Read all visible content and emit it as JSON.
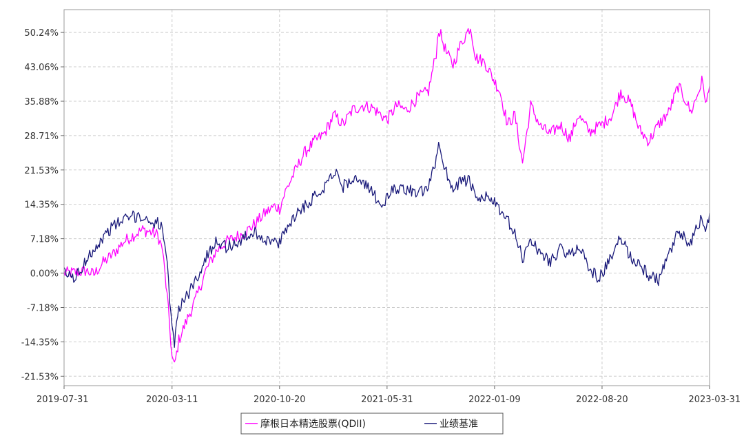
{
  "chart_data": {
    "type": "line",
    "title": "",
    "xlabel": "",
    "ylabel": "",
    "x_ticks": [
      "2019-07-31",
      "2020-03-11",
      "2020-10-20",
      "2021-05-31",
      "2022-01-09",
      "2022-08-20",
      "2023-03-31"
    ],
    "y_ticks": [
      "50.24%",
      "43.06%",
      "35.88%",
      "28.71%",
      "21.53%",
      "14.35%",
      "7.18%",
      "0.00%",
      "-7.18%",
      "-14.35%",
      "-21.53%"
    ],
    "ylim": [
      -23.5,
      55
    ],
    "xlim": [
      "2019-07-31",
      "2023-03-31"
    ],
    "grid": true,
    "legend_position": "bottom-center",
    "series": [
      {
        "name": "摩根日本精选股票(QDII)",
        "color": "#ff00ff",
        "points": [
          [
            "2019-07-31",
            0.0
          ],
          [
            "2019-08-31",
            0.2
          ],
          [
            "2019-09-15",
            0.5
          ],
          [
            "2019-10-01",
            -0.3
          ],
          [
            "2019-10-20",
            2.2
          ],
          [
            "2019-11-10",
            4.0
          ],
          [
            "2019-12-01",
            6.5
          ],
          [
            "2019-12-20",
            7.8
          ],
          [
            "2020-01-10",
            9.0
          ],
          [
            "2020-01-25",
            8.6
          ],
          [
            "2020-02-10",
            8.0
          ],
          [
            "2020-02-20",
            5.0
          ],
          [
            "2020-03-01",
            -5.0
          ],
          [
            "2020-03-11",
            -17.5
          ],
          [
            "2020-03-16",
            -19.5
          ],
          [
            "2020-03-25",
            -14.0
          ],
          [
            "2020-04-10",
            -10.0
          ],
          [
            "2020-05-01",
            -5.0
          ],
          [
            "2020-05-20",
            0.5
          ],
          [
            "2020-06-10",
            4.5
          ],
          [
            "2020-07-01",
            6.5
          ],
          [
            "2020-07-20",
            7.5
          ],
          [
            "2020-08-10",
            8.5
          ],
          [
            "2020-09-01",
            10.5
          ],
          [
            "2020-09-20",
            12.5
          ],
          [
            "2020-10-10",
            14.0
          ],
          [
            "2020-10-20",
            13.5
          ],
          [
            "2020-11-01",
            17.0
          ],
          [
            "2020-11-20",
            21.0
          ],
          [
            "2020-12-10",
            25.0
          ],
          [
            "2021-01-01",
            27.5
          ],
          [
            "2021-01-20",
            29.0
          ],
          [
            "2021-02-10",
            33.0
          ],
          [
            "2021-03-01",
            31.0
          ],
          [
            "2021-03-20",
            34.0
          ],
          [
            "2021-04-10",
            35.0
          ],
          [
            "2021-05-01",
            34.5
          ],
          [
            "2021-05-31",
            32.0
          ],
          [
            "2021-06-20",
            35.0
          ],
          [
            "2021-07-10",
            34.0
          ],
          [
            "2021-08-01",
            36.5
          ],
          [
            "2021-08-25",
            38.0
          ],
          [
            "2021-09-10",
            46.0
          ],
          [
            "2021-09-15",
            51.0
          ],
          [
            "2021-10-01",
            46.0
          ],
          [
            "2021-10-15",
            43.5
          ],
          [
            "2021-11-01",
            48.0
          ],
          [
            "2021-11-20",
            51.5
          ],
          [
            "2021-12-01",
            45.0
          ],
          [
            "2021-12-20",
            44.0
          ],
          [
            "2022-01-09",
            40.0
          ],
          [
            "2022-01-20",
            38.0
          ],
          [
            "2022-02-05",
            31.0
          ],
          [
            "2022-02-20",
            33.0
          ],
          [
            "2022-03-08",
            23.0
          ],
          [
            "2022-03-25",
            35.0
          ],
          [
            "2022-04-15",
            30.5
          ],
          [
            "2022-05-05",
            29.0
          ],
          [
            "2022-05-25",
            31.0
          ],
          [
            "2022-06-15",
            28.0
          ],
          [
            "2022-07-01",
            33.0
          ],
          [
            "2022-07-25",
            29.5
          ],
          [
            "2022-08-10",
            30.5
          ],
          [
            "2022-08-20",
            31.0
          ],
          [
            "2022-09-10",
            33.0
          ],
          [
            "2022-09-28",
            38.0
          ],
          [
            "2022-10-20",
            35.0
          ],
          [
            "2022-11-05",
            30.0
          ],
          [
            "2022-11-25",
            27.5
          ],
          [
            "2022-12-15",
            31.0
          ],
          [
            "2023-01-05",
            33.5
          ],
          [
            "2023-01-25",
            39.0
          ],
          [
            "2023-02-10",
            36.0
          ],
          [
            "2023-02-20",
            33.5
          ],
          [
            "2023-03-05",
            37.0
          ],
          [
            "2023-03-15",
            40.0
          ],
          [
            "2023-03-25",
            35.5
          ],
          [
            "2023-03-31",
            39.0
          ]
        ]
      },
      {
        "name": "业绩基准",
        "color": "#1a1a7a",
        "points": [
          [
            "2019-07-31",
            0.0
          ],
          [
            "2019-08-20",
            -1.0
          ],
          [
            "2019-09-05",
            0.5
          ],
          [
            "2019-09-20",
            4.0
          ],
          [
            "2019-10-10",
            6.0
          ],
          [
            "2019-11-01",
            9.0
          ],
          [
            "2019-11-20",
            10.5
          ],
          [
            "2019-12-10",
            11.5
          ],
          [
            "2020-01-01",
            12.0
          ],
          [
            "2020-01-20",
            11.0
          ],
          [
            "2020-02-10",
            10.5
          ],
          [
            "2020-02-20",
            9.5
          ],
          [
            "2020-03-01",
            1.0
          ],
          [
            "2020-03-11",
            -12.0
          ],
          [
            "2020-03-16",
            -14.5
          ],
          [
            "2020-03-25",
            -7.0
          ],
          [
            "2020-04-10",
            -5.0
          ],
          [
            "2020-05-01",
            -1.0
          ],
          [
            "2020-05-20",
            3.0
          ],
          [
            "2020-06-10",
            7.0
          ],
          [
            "2020-07-01",
            5.5
          ],
          [
            "2020-07-20",
            6.0
          ],
          [
            "2020-08-10",
            7.5
          ],
          [
            "2020-09-01",
            8.5
          ],
          [
            "2020-09-20",
            7.0
          ],
          [
            "2020-10-10",
            6.5
          ],
          [
            "2020-10-20",
            6.0
          ],
          [
            "2020-11-01",
            9.0
          ],
          [
            "2020-11-20",
            12.0
          ],
          [
            "2020-12-10",
            14.0
          ],
          [
            "2021-01-01",
            16.0
          ],
          [
            "2021-01-20",
            18.0
          ],
          [
            "2021-02-10",
            21.5
          ],
          [
            "2021-03-01",
            18.0
          ],
          [
            "2021-03-20",
            20.0
          ],
          [
            "2021-04-10",
            18.5
          ],
          [
            "2021-05-01",
            17.0
          ],
          [
            "2021-05-20",
            14.0
          ],
          [
            "2021-06-10",
            17.0
          ],
          [
            "2021-07-01",
            18.0
          ],
          [
            "2021-08-01",
            16.5
          ],
          [
            "2021-08-25",
            17.5
          ],
          [
            "2021-09-10",
            24.0
          ],
          [
            "2021-09-15",
            27.0
          ],
          [
            "2021-10-01",
            21.0
          ],
          [
            "2021-10-15",
            17.5
          ],
          [
            "2021-11-01",
            19.5
          ],
          [
            "2021-11-20",
            19.0
          ],
          [
            "2021-12-01",
            15.0
          ],
          [
            "2021-12-20",
            16.0
          ],
          [
            "2022-01-09",
            15.0
          ],
          [
            "2022-01-20",
            12.5
          ],
          [
            "2022-02-05",
            11.0
          ],
          [
            "2022-02-20",
            8.0
          ],
          [
            "2022-03-08",
            3.0
          ],
          [
            "2022-03-25",
            7.0
          ],
          [
            "2022-04-15",
            4.0
          ],
          [
            "2022-05-05",
            2.5
          ],
          [
            "2022-05-25",
            5.0
          ],
          [
            "2022-06-15",
            3.5
          ],
          [
            "2022-07-01",
            6.0
          ],
          [
            "2022-07-25",
            1.0
          ],
          [
            "2022-08-10",
            -1.0
          ],
          [
            "2022-08-20",
            0.0
          ],
          [
            "2022-09-10",
            3.5
          ],
          [
            "2022-09-28",
            7.5
          ],
          [
            "2022-10-20",
            3.0
          ],
          [
            "2022-11-05",
            2.0
          ],
          [
            "2022-11-25",
            -0.5
          ],
          [
            "2022-12-15",
            -1.5
          ],
          [
            "2023-01-05",
            3.5
          ],
          [
            "2023-01-25",
            8.5
          ],
          [
            "2023-02-10",
            7.0
          ],
          [
            "2023-02-20",
            6.0
          ],
          [
            "2023-03-05",
            9.5
          ],
          [
            "2023-03-15",
            11.5
          ],
          [
            "2023-03-25",
            9.0
          ],
          [
            "2023-03-31",
            12.5
          ]
        ]
      }
    ]
  }
}
